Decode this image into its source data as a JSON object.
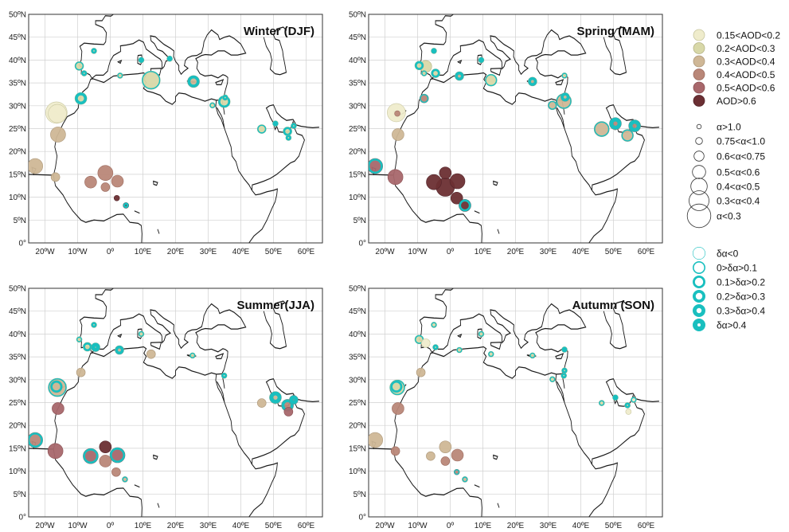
{
  "colors": {
    "bin0": "#efeccc",
    "bin1": "#d8d8a8",
    "bin2": "#cfb796",
    "bin3": "#b98778",
    "bin4": "#a8676b",
    "bin5": "#6b2f33",
    "ring": "#19bfbf",
    "coast": "#1a1a1a",
    "grid": "#d0d0d0"
  },
  "axes": {
    "lat_labels": [
      "0°",
      "5ºN",
      "10ºN",
      "15ºN",
      "20ºN",
      "25ºN",
      "30ºN",
      "35ºN",
      "40ºN",
      "45ºN",
      "50ºN"
    ],
    "lon_labels": [
      "20ºW",
      "10ºW",
      "0º",
      "10ºE",
      "20ºE",
      "30ºE",
      "40ºE",
      "50ºE",
      "60ºE"
    ]
  },
  "panels": [
    {
      "title": "Winter (DJF)",
      "sites": [
        {
          "lon": -16.5,
          "lat": 28.5,
          "aod": 0,
          "alpha": 5,
          "ring": 0
        },
        {
          "lon": -16.2,
          "lat": 28.3,
          "aod": 0,
          "alpha": 4,
          "ring": 0
        },
        {
          "lon": -16.0,
          "lat": 23.7,
          "aod": 2,
          "alpha": 3,
          "ring": 0
        },
        {
          "lon": -23.0,
          "lat": 16.8,
          "aod": 2,
          "alpha": 3,
          "ring": 0
        },
        {
          "lon": -16.8,
          "lat": 14.4,
          "aod": 2,
          "alpha": 1,
          "ring": 0
        },
        {
          "lon": -9.0,
          "lat": 31.6,
          "aod": 1,
          "alpha": 2,
          "ring": 3
        },
        {
          "lon": -6.0,
          "lat": 13.3,
          "aod": 3,
          "alpha": 2,
          "ring": 0
        },
        {
          "lon": -1.5,
          "lat": 15.3,
          "aod": 3,
          "alpha": 3,
          "ring": 0
        },
        {
          "lon": -1.5,
          "lat": 12.2,
          "aod": 3,
          "alpha": 1,
          "ring": 0
        },
        {
          "lon": 2.2,
          "lat": 13.5,
          "aod": 3,
          "alpha": 2,
          "ring": 0
        },
        {
          "lon": 2.0,
          "lat": 9.8,
          "aod": 5,
          "alpha": 0,
          "ring": 0
        },
        {
          "lon": 4.8,
          "lat": 8.2,
          "aod": 5,
          "alpha": 0,
          "ring": 2
        },
        {
          "lon": -9.5,
          "lat": 38.7,
          "aod": 1,
          "alpha": 1,
          "ring": 1
        },
        {
          "lon": -8.0,
          "lat": 37.1,
          "aod": 1,
          "alpha": 0,
          "ring": 2
        },
        {
          "lon": -5.0,
          "lat": 42.0,
          "aod": 1,
          "alpha": 0,
          "ring": 2
        },
        {
          "lon": 3.0,
          "lat": 36.6,
          "aod": 1,
          "alpha": 0,
          "ring": 1
        },
        {
          "lon": 9.5,
          "lat": 40.0,
          "aod": 1,
          "alpha": 0,
          "ring": 3
        },
        {
          "lon": 12.5,
          "lat": 35.6,
          "aod": 1,
          "alpha": 4,
          "ring": 1
        },
        {
          "lon": 18.2,
          "lat": 40.3,
          "aod": 1,
          "alpha": 0,
          "ring": 3
        },
        {
          "lon": 25.5,
          "lat": 35.3,
          "aod": 2,
          "alpha": 2,
          "ring": 3
        },
        {
          "lon": 34.9,
          "lat": 30.9,
          "aod": 1,
          "alpha": 2,
          "ring": 2
        },
        {
          "lon": 35.2,
          "lat": 31.8,
          "aod": 1,
          "alpha": 0,
          "ring": 2
        },
        {
          "lon": 31.3,
          "lat": 30.1,
          "aod": 1,
          "alpha": 0,
          "ring": 1
        },
        {
          "lon": 46.4,
          "lat": 24.9,
          "aod": 1,
          "alpha": 1,
          "ring": 1
        },
        {
          "lon": 50.6,
          "lat": 26.1,
          "aod": 1,
          "alpha": 0,
          "ring": 3
        },
        {
          "lon": 54.3,
          "lat": 24.4,
          "aod": 1,
          "alpha": 1,
          "ring": 2
        },
        {
          "lon": 54.6,
          "lat": 23.0,
          "aod": 1,
          "alpha": 0,
          "ring": 2
        },
        {
          "lon": 56.2,
          "lat": 25.6,
          "aod": 1,
          "alpha": 0,
          "ring": 2
        }
      ]
    },
    {
      "title": "Spring (MAM)",
      "sites": [
        {
          "lon": -16.5,
          "lat": 28.5,
          "aod": 0,
          "alpha": 4,
          "ring": 0
        },
        {
          "lon": -16.2,
          "lat": 28.3,
          "aod": 3,
          "alpha": 0,
          "ring": 0
        },
        {
          "lon": -16.0,
          "lat": 23.7,
          "aod": 2,
          "alpha": 2,
          "ring": 0
        },
        {
          "lon": -23.0,
          "lat": 16.8,
          "aod": 4,
          "alpha": 3,
          "ring": 2
        },
        {
          "lon": -16.8,
          "lat": 14.4,
          "aod": 4,
          "alpha": 3,
          "ring": 0
        },
        {
          "lon": -8.0,
          "lat": 31.6,
          "aod": 3,
          "alpha": 1,
          "ring": 1
        },
        {
          "lon": -5.0,
          "lat": 13.3,
          "aod": 5,
          "alpha": 3,
          "ring": 0
        },
        {
          "lon": -1.5,
          "lat": 15.3,
          "aod": 5,
          "alpha": 2,
          "ring": 0
        },
        {
          "lon": -1.5,
          "lat": 12.2,
          "aod": 5,
          "alpha": 4,
          "ring": 0
        },
        {
          "lon": 2.2,
          "lat": 13.5,
          "aod": 5,
          "alpha": 3,
          "ring": 0
        },
        {
          "lon": 2.0,
          "lat": 9.8,
          "aod": 5,
          "alpha": 2,
          "ring": 0
        },
        {
          "lon": 4.5,
          "lat": 8.2,
          "aod": 5,
          "alpha": 2,
          "ring": 2
        },
        {
          "lon": -9.5,
          "lat": 38.8,
          "aod": 1,
          "alpha": 1,
          "ring": 2
        },
        {
          "lon": -7.5,
          "lat": 38.6,
          "aod": 1,
          "alpha": 2,
          "ring": 0
        },
        {
          "lon": -8.0,
          "lat": 37.1,
          "aod": 1,
          "alpha": 0,
          "ring": 1
        },
        {
          "lon": -4.5,
          "lat": 37.1,
          "aod": 1,
          "alpha": 1,
          "ring": 2
        },
        {
          "lon": -5.0,
          "lat": 42.0,
          "aod": 1,
          "alpha": 0,
          "ring": 3
        },
        {
          "lon": 2.8,
          "lat": 36.5,
          "aod": 2,
          "alpha": 1,
          "ring": 3
        },
        {
          "lon": 9.5,
          "lat": 40.0,
          "aod": 1,
          "alpha": 0,
          "ring": 3
        },
        {
          "lon": 12.5,
          "lat": 35.6,
          "aod": 1,
          "alpha": 2,
          "ring": 1
        },
        {
          "lon": 25.2,
          "lat": 35.3,
          "aod": 2,
          "alpha": 1,
          "ring": 3
        },
        {
          "lon": 31.3,
          "lat": 30.1,
          "aod": 2,
          "alpha": 1,
          "ring": 1
        },
        {
          "lon": 34.8,
          "lat": 31.0,
          "aod": 2,
          "alpha": 3,
          "ring": 1
        },
        {
          "lon": 35.2,
          "lat": 31.9,
          "aod": 2,
          "alpha": 1,
          "ring": 3
        },
        {
          "lon": 35.0,
          "lat": 36.6,
          "aod": 1,
          "alpha": 0,
          "ring": 1
        },
        {
          "lon": 46.4,
          "lat": 24.9,
          "aod": 2,
          "alpha": 3,
          "ring": 1
        },
        {
          "lon": 50.6,
          "lat": 26.1,
          "aod": 3,
          "alpha": 2,
          "ring": 4
        },
        {
          "lon": 54.3,
          "lat": 23.5,
          "aod": 2,
          "alpha": 2,
          "ring": 1
        },
        {
          "lon": 56.5,
          "lat": 25.6,
          "aod": 3,
          "alpha": 2,
          "ring": 4
        }
      ]
    },
    {
      "title": "Summer(JJA)",
      "sites": [
        {
          "lon": -16.5,
          "lat": 28.5,
          "aod": 2,
          "alpha": 2,
          "ring": 2
        },
        {
          "lon": -16.2,
          "lat": 28.3,
          "aod": 2,
          "alpha": 4,
          "ring": 1
        },
        {
          "lon": -16.0,
          "lat": 23.7,
          "aod": 4,
          "alpha": 2,
          "ring": 0
        },
        {
          "lon": -23.0,
          "lat": 16.8,
          "aod": 3,
          "alpha": 3,
          "ring": 2
        },
        {
          "lon": -16.8,
          "lat": 14.4,
          "aod": 4,
          "alpha": 3,
          "ring": 0
        },
        {
          "lon": -9.0,
          "lat": 31.6,
          "aod": 2,
          "alpha": 1,
          "ring": 0
        },
        {
          "lon": -6.0,
          "lat": 13.3,
          "aod": 4,
          "alpha": 3,
          "ring": 2
        },
        {
          "lon": -1.5,
          "lat": 15.3,
          "aod": 5,
          "alpha": 2,
          "ring": 0
        },
        {
          "lon": -1.5,
          "lat": 12.2,
          "aod": 3,
          "alpha": 2,
          "ring": 0
        },
        {
          "lon": 2.2,
          "lat": 13.5,
          "aod": 4,
          "alpha": 3,
          "ring": 2
        },
        {
          "lon": 1.8,
          "lat": 9.8,
          "aod": 3,
          "alpha": 1,
          "ring": 0
        },
        {
          "lon": 4.5,
          "lat": 8.2,
          "aod": 2,
          "alpha": 0,
          "ring": 1
        },
        {
          "lon": -9.5,
          "lat": 38.8,
          "aod": 1,
          "alpha": 0,
          "ring": 1
        },
        {
          "lon": -7.0,
          "lat": 37.2,
          "aod": 1,
          "alpha": 1,
          "ring": 2
        },
        {
          "lon": -4.5,
          "lat": 37.1,
          "aod": 2,
          "alpha": 1,
          "ring": 4
        },
        {
          "lon": -5.0,
          "lat": 42.0,
          "aod": 1,
          "alpha": 0,
          "ring": 2
        },
        {
          "lon": 2.8,
          "lat": 36.5,
          "aod": 2,
          "alpha": 1,
          "ring": 3
        },
        {
          "lon": 9.5,
          "lat": 40.0,
          "aod": 1,
          "alpha": 0,
          "ring": 1
        },
        {
          "lon": 12.5,
          "lat": 35.6,
          "aod": 2,
          "alpha": 1,
          "ring": 0
        },
        {
          "lon": 25.2,
          "lat": 35.3,
          "aod": 1,
          "alpha": 0,
          "ring": 1
        },
        {
          "lon": 34.9,
          "lat": 30.9,
          "aod": 1,
          "alpha": 0,
          "ring": 2
        },
        {
          "lon": 46.4,
          "lat": 24.9,
          "aod": 2,
          "alpha": 1,
          "ring": 0
        },
        {
          "lon": 50.6,
          "lat": 26.1,
          "aod": 2,
          "alpha": 2,
          "ring": 4
        },
        {
          "lon": 54.3,
          "lat": 24.4,
          "aod": 3,
          "alpha": 2,
          "ring": 3
        },
        {
          "lon": 54.6,
          "lat": 23.0,
          "aod": 4,
          "alpha": 1,
          "ring": 0
        },
        {
          "lon": 56.2,
          "lat": 25.6,
          "aod": 3,
          "alpha": 1,
          "ring": 4
        }
      ]
    },
    {
      "title": "Autumn (SON)",
      "sites": [
        {
          "lon": -16.5,
          "lat": 28.5,
          "aod": 1,
          "alpha": 2,
          "ring": 2
        },
        {
          "lon": -16.2,
          "lat": 28.3,
          "aod": 1,
          "alpha": 3,
          "ring": 1
        },
        {
          "lon": -16.0,
          "lat": 23.7,
          "aod": 3,
          "alpha": 2,
          "ring": 0
        },
        {
          "lon": -23.0,
          "lat": 16.8,
          "aod": 2,
          "alpha": 3,
          "ring": 0
        },
        {
          "lon": -16.8,
          "lat": 14.4,
          "aod": 3,
          "alpha": 1,
          "ring": 0
        },
        {
          "lon": -9.0,
          "lat": 31.6,
          "aod": 2,
          "alpha": 1,
          "ring": 0
        },
        {
          "lon": -6.0,
          "lat": 13.3,
          "aod": 2,
          "alpha": 1,
          "ring": 0
        },
        {
          "lon": -1.5,
          "lat": 15.3,
          "aod": 2,
          "alpha": 2,
          "ring": 0
        },
        {
          "lon": -1.5,
          "lat": 12.2,
          "aod": 3,
          "alpha": 1,
          "ring": 0
        },
        {
          "lon": 2.2,
          "lat": 13.5,
          "aod": 3,
          "alpha": 2,
          "ring": 0
        },
        {
          "lon": 2.0,
          "lat": 9.8,
          "aod": 3,
          "alpha": 0,
          "ring": 1
        },
        {
          "lon": 4.5,
          "lat": 8.2,
          "aod": 2,
          "alpha": 0,
          "ring": 1
        },
        {
          "lon": -9.5,
          "lat": 38.8,
          "aod": 1,
          "alpha": 1,
          "ring": 1
        },
        {
          "lon": -7.5,
          "lat": 38.0,
          "aod": 0,
          "alpha": 1,
          "ring": 0
        },
        {
          "lon": -4.5,
          "lat": 37.1,
          "aod": 1,
          "alpha": 0,
          "ring": 2
        },
        {
          "lon": -5.0,
          "lat": 42.0,
          "aod": 1,
          "alpha": 0,
          "ring": 1
        },
        {
          "lon": 2.8,
          "lat": 36.5,
          "aod": 1,
          "alpha": 0,
          "ring": 1
        },
        {
          "lon": 9.5,
          "lat": 40.0,
          "aod": 1,
          "alpha": 0,
          "ring": 1
        },
        {
          "lon": 12.5,
          "lat": 35.6,
          "aod": 1,
          "alpha": 0,
          "ring": 1
        },
        {
          "lon": 25.2,
          "lat": 35.3,
          "aod": 1,
          "alpha": 0,
          "ring": 1
        },
        {
          "lon": 31.3,
          "lat": 30.1,
          "aod": 1,
          "alpha": 0,
          "ring": 1
        },
        {
          "lon": 34.8,
          "lat": 30.9,
          "aod": 1,
          "alpha": 0,
          "ring": 2
        },
        {
          "lon": 35.0,
          "lat": 32.0,
          "aod": 1,
          "alpha": 0,
          "ring": 2
        },
        {
          "lon": 35.0,
          "lat": 36.6,
          "aod": 1,
          "alpha": 0,
          "ring": 3
        },
        {
          "lon": 46.4,
          "lat": 24.9,
          "aod": 1,
          "alpha": 0,
          "ring": 1
        },
        {
          "lon": 50.6,
          "lat": 26.1,
          "aod": 1,
          "alpha": 0,
          "ring": 3
        },
        {
          "lon": 54.3,
          "lat": 24.4,
          "aod": 1,
          "alpha": 0,
          "ring": 2
        },
        {
          "lon": 54.6,
          "lat": 23.0,
          "aod": 0,
          "alpha": 0,
          "ring": 0
        },
        {
          "lon": 56.2,
          "lat": 25.6,
          "aod": 0,
          "alpha": 0,
          "ring": 1
        }
      ]
    }
  ],
  "legend": {
    "aod": [
      "0.15<AOD<0.2",
      "0.2<AOD<0.3",
      "0.3<AOD<0.4",
      "0.4<AOD<0.5",
      "0.5<AOD<0.6",
      "AOD>0.6"
    ],
    "alpha": [
      "α>1.0",
      "0.75<α<1.0",
      "0.6<α<0.75",
      "0.5<α<0.6",
      "0.4<α<0.5",
      "0.3<α<0.4",
      "α<0.3"
    ],
    "delta": [
      "δα<0",
      "0>δα>0.1",
      "0.1>δα>0.2",
      "0.2>δα>0.3",
      "0.3>δα>0.4",
      "δα>0.4"
    ]
  }
}
